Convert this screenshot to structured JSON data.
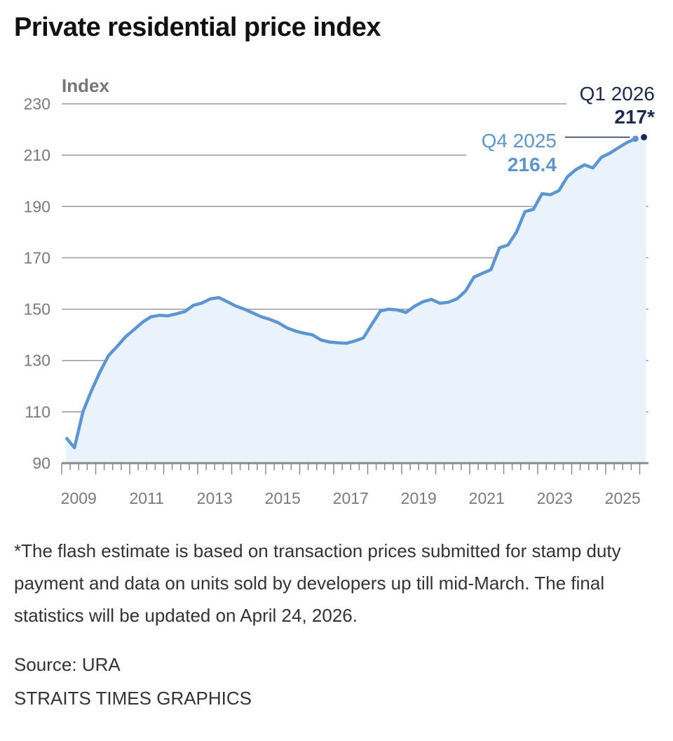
{
  "title": "Private residential price index",
  "chart_data": {
    "type": "area",
    "ylabel": "Index",
    "ylim": [
      90,
      230
    ],
    "yticks": [
      90,
      110,
      130,
      150,
      170,
      190,
      210,
      230
    ],
    "xtick_labels": [
      "2009",
      "2011",
      "2013",
      "2015",
      "2017",
      "2019",
      "2021",
      "2023",
      "2025"
    ],
    "grid": true,
    "x": [
      "2009 Q1",
      "2009 Q2",
      "2009 Q3",
      "2009 Q4",
      "2010 Q1",
      "2010 Q2",
      "2010 Q3",
      "2010 Q4",
      "2011 Q1",
      "2011 Q2",
      "2011 Q3",
      "2011 Q4",
      "2012 Q1",
      "2012 Q2",
      "2012 Q3",
      "2012 Q4",
      "2013 Q1",
      "2013 Q2",
      "2013 Q3",
      "2013 Q4",
      "2014 Q1",
      "2014 Q2",
      "2014 Q3",
      "2014 Q4",
      "2015 Q1",
      "2015 Q2",
      "2015 Q3",
      "2015 Q4",
      "2016 Q1",
      "2016 Q2",
      "2016 Q3",
      "2016 Q4",
      "2017 Q1",
      "2017 Q2",
      "2017 Q3",
      "2017 Q4",
      "2018 Q1",
      "2018 Q2",
      "2018 Q3",
      "2018 Q4",
      "2019 Q1",
      "2019 Q2",
      "2019 Q3",
      "2019 Q4",
      "2020 Q1",
      "2020 Q2",
      "2020 Q3",
      "2020 Q4",
      "2021 Q1",
      "2021 Q2",
      "2021 Q3",
      "2021 Q4",
      "2022 Q1",
      "2022 Q2",
      "2022 Q3",
      "2022 Q4",
      "2023 Q1",
      "2023 Q2",
      "2023 Q3",
      "2023 Q4",
      "2024 Q1",
      "2024 Q2",
      "2024 Q3",
      "2024 Q4",
      "2025 Q1",
      "2025 Q2",
      "2025 Q3",
      "2025 Q4"
    ],
    "values": [
      100,
      96,
      110,
      118.2,
      125.5,
      131.9,
      135.4,
      139.2,
      142,
      144.9,
      147,
      147.6,
      147.4,
      148.2,
      149.1,
      151.5,
      152.4,
      154,
      154.5,
      152.9,
      151.2,
      150,
      148.5,
      147,
      146,
      144.7,
      142.7,
      141.5,
      140.6,
      140,
      138,
      137.2,
      136.9,
      136.7,
      137.6,
      138.8,
      144.2,
      149.3,
      150,
      149.7,
      148.7,
      151.1,
      152.9,
      153.8,
      152.3,
      152.7,
      154,
      157,
      162.5,
      164,
      165.4,
      173.9,
      175,
      180,
      188,
      188.9,
      195,
      194.6,
      196.2,
      201.6,
      204.4,
      206.2,
      205,
      209.2,
      210.8,
      212.9,
      214.9,
      216.4
    ],
    "flash_estimate": {
      "x": "2026 Q1",
      "value": 217
    },
    "annotations": {
      "last": {
        "label": "Q4 2025",
        "value": "216.4"
      },
      "flash": {
        "label": "Q1 2026",
        "value": "217*"
      }
    },
    "colors": {
      "line": "#5b96d2",
      "fill": "#eaf3fc",
      "flash": "#1b2a4e",
      "grid": "#9a9a9a",
      "axis": "#8a8a8a",
      "tick_text": "#7a7a7a"
    }
  },
  "footnote": "*The flash estimate is based on transaction prices submitted for stamp duty payment and data on units sold by developers up till mid-March. The final statistics will be updated on April 24, 2026.",
  "source": "Source: URA",
  "credit": "STRAITS TIMES GRAPHICS"
}
